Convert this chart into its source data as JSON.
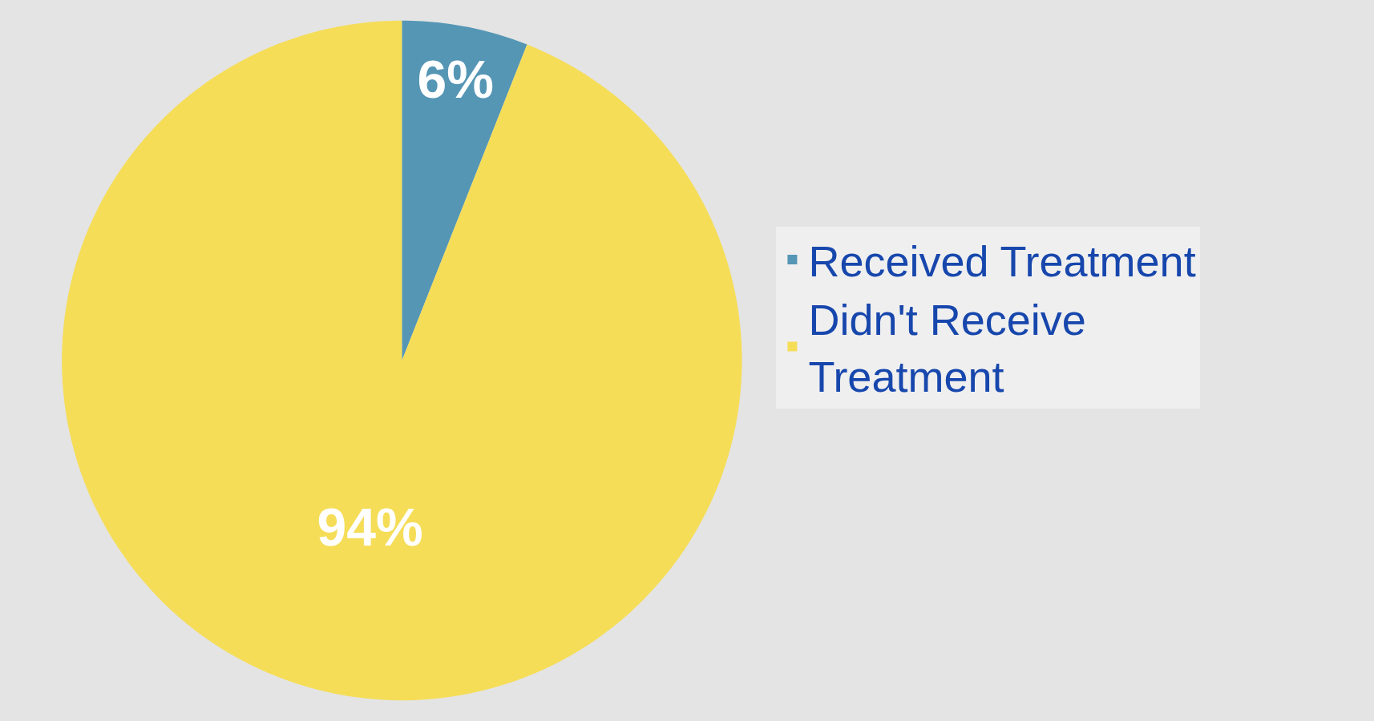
{
  "chart_data": {
    "type": "pie",
    "categories": [
      "Received Treatment",
      "Didn't Receive Treatment"
    ],
    "values": [
      6,
      94
    ],
    "colors": [
      "#5596b5",
      "#f5dd58"
    ],
    "value_labels": [
      "6%",
      "94%"
    ],
    "legend": "right"
  }
}
